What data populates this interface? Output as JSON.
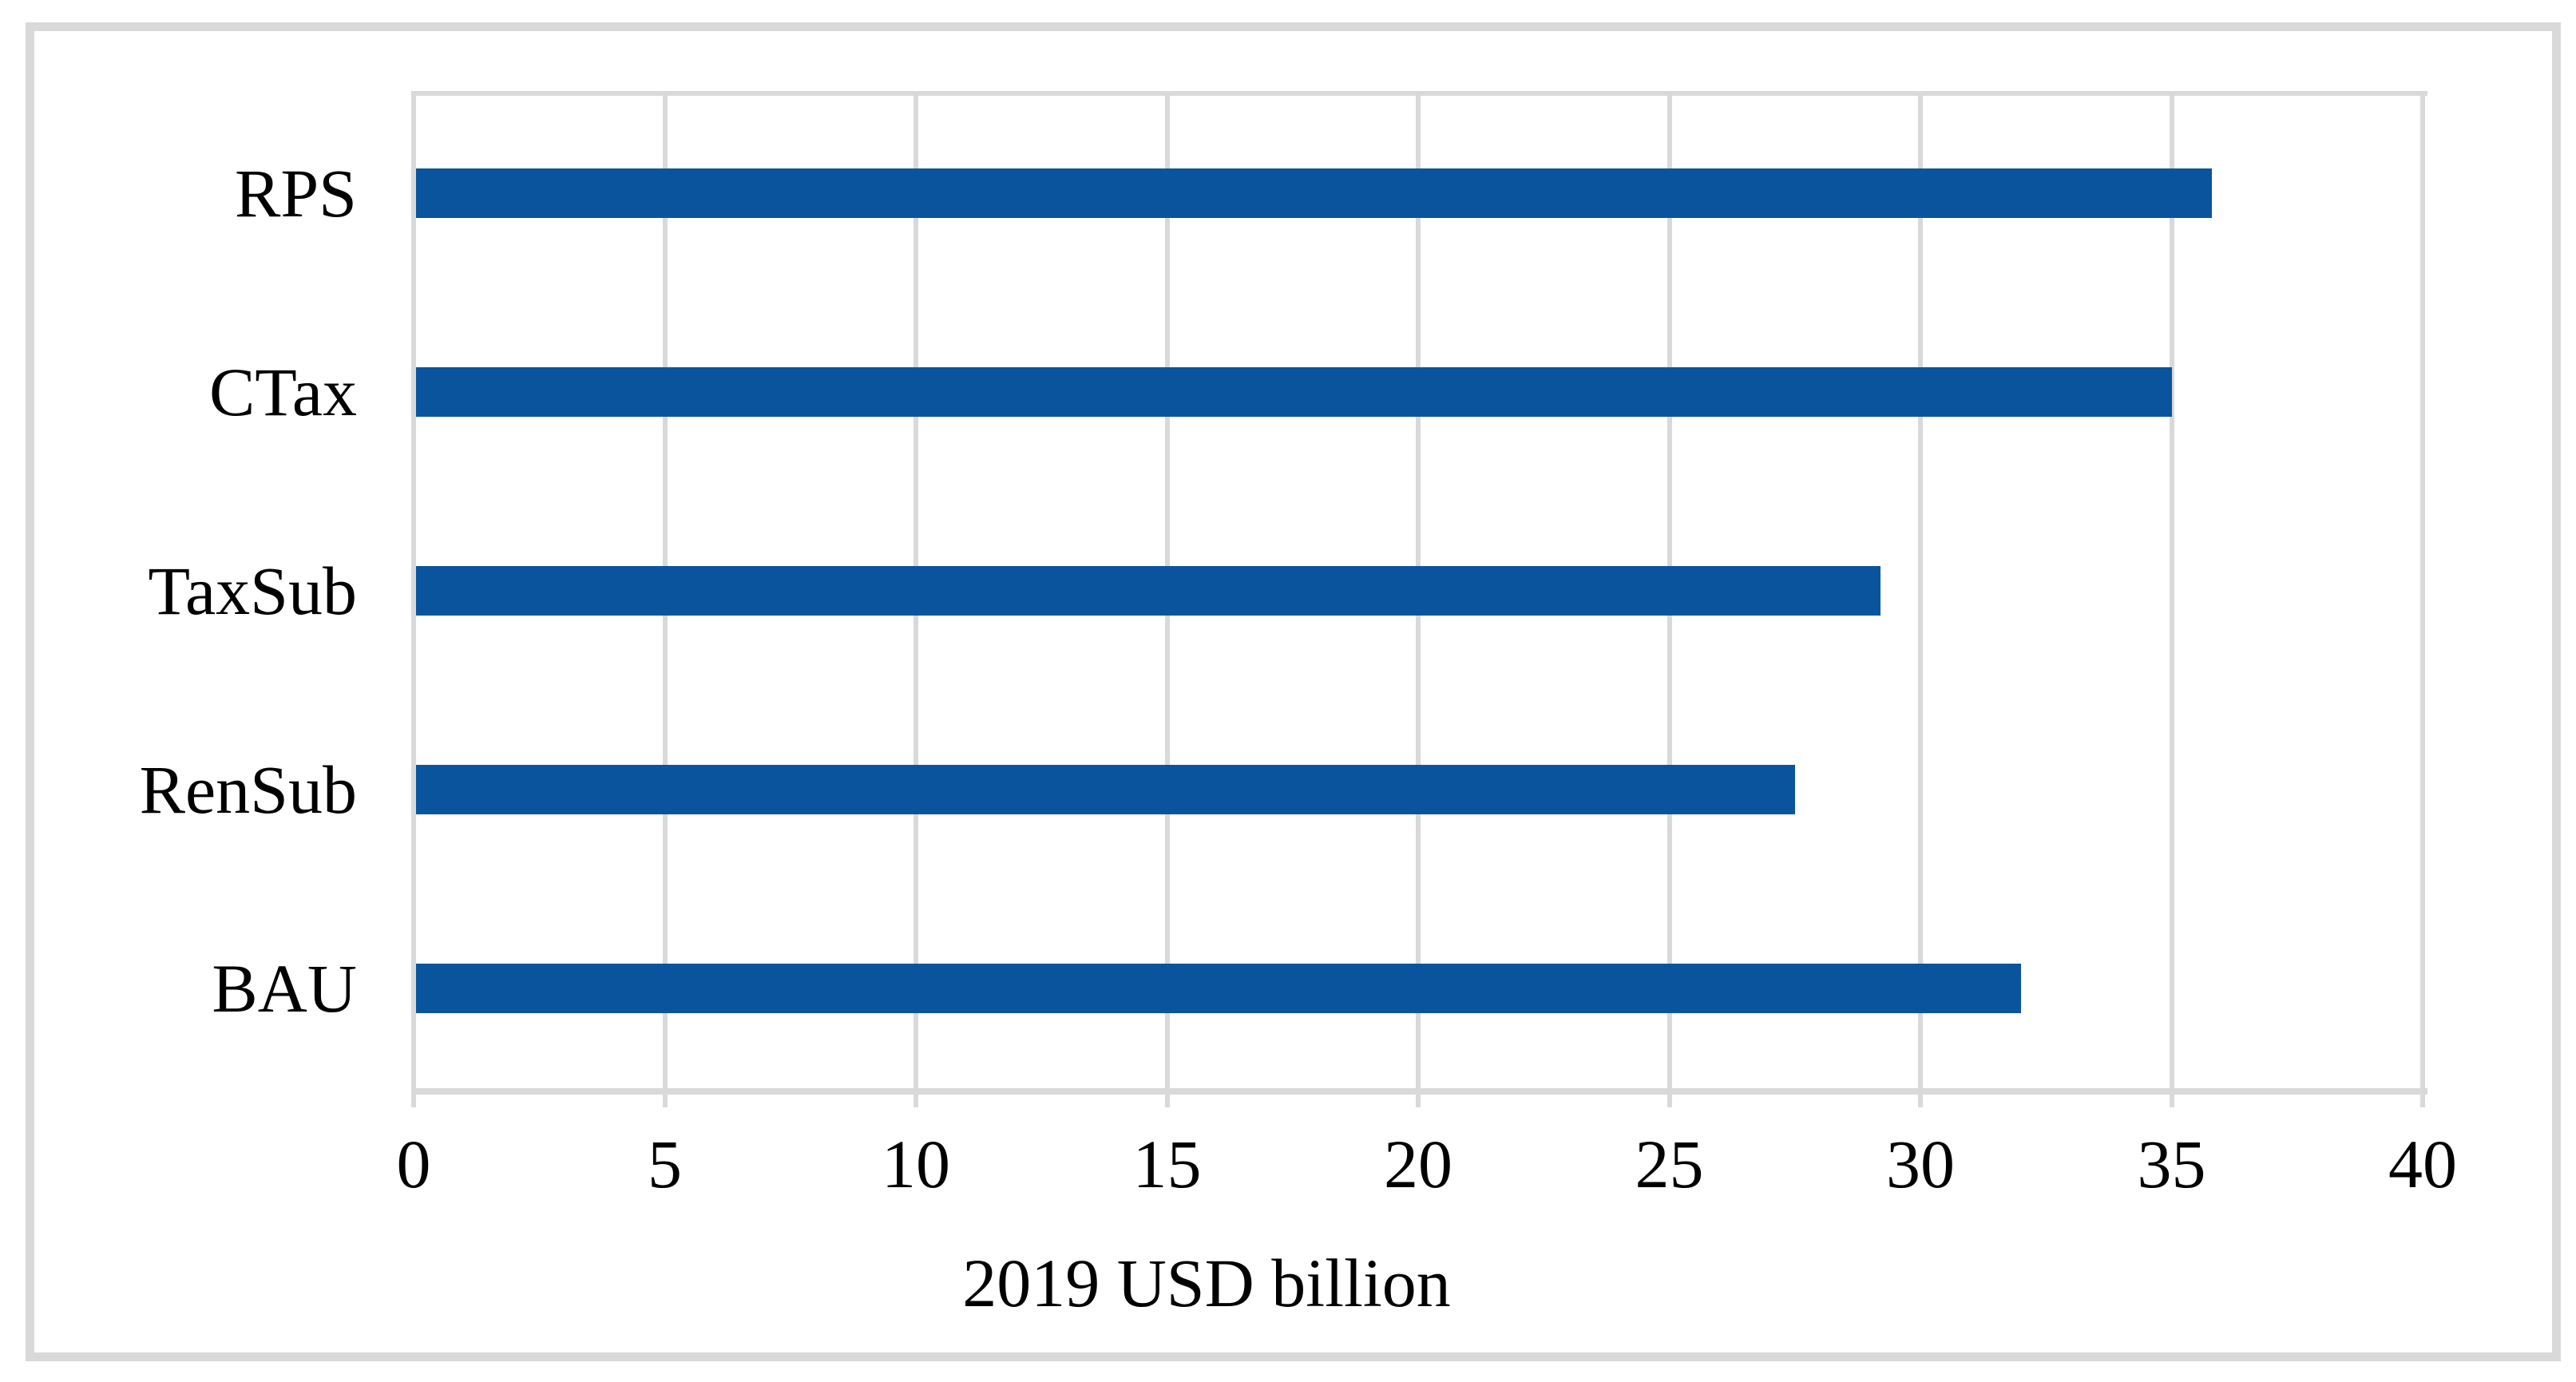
{
  "chart_data": {
    "type": "bar",
    "orientation": "horizontal",
    "title": "",
    "xlabel": "2019 USD billion",
    "ylabel": "",
    "categories": [
      "RPS",
      "CTax",
      "TaxSub",
      "RenSub",
      "BAU"
    ],
    "values": [
      35.8,
      35.0,
      29.2,
      27.5,
      32.0
    ],
    "xlim": [
      0,
      40
    ],
    "xticks": [
      0,
      5,
      10,
      15,
      20,
      25,
      30,
      35,
      40
    ],
    "grid": true,
    "legend": false,
    "bar_color": "#0A549E",
    "grid_color": "#D9D9D9",
    "axis_color": "#D9D9D9",
    "frame_color": "#D9D9D9",
    "text_color": "#000000"
  }
}
